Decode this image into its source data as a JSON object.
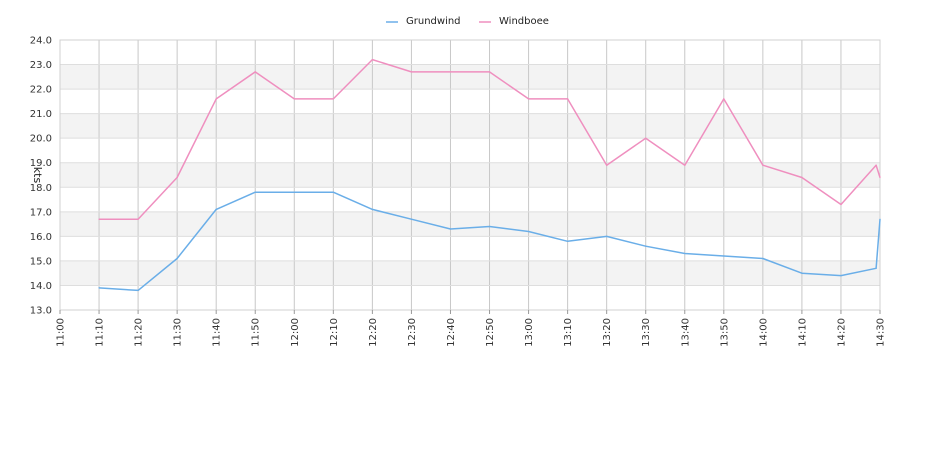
{
  "chart_data": {
    "type": "line",
    "xlabel": "",
    "ylabel": "kts",
    "ylim": [
      13.0,
      24.0
    ],
    "y_ticks": [
      "13.0",
      "14.0",
      "15.0",
      "16.0",
      "17.0",
      "18.0",
      "19.0",
      "20.0",
      "21.0",
      "22.0",
      "23.0",
      "24.0"
    ],
    "x_ticks": [
      "11:00",
      "11:10",
      "11:20",
      "11:30",
      "11:40",
      "11:50",
      "12:00",
      "12:10",
      "12:20",
      "12:30",
      "12:40",
      "12:50",
      "13:00",
      "13:10",
      "13:20",
      "13:30",
      "13:40",
      "13:50",
      "14:00",
      "14:10",
      "14:20",
      "14:30"
    ],
    "xlim": [
      "11:00",
      "14:30"
    ],
    "grid": true,
    "legend": "top-center",
    "series": [
      {
        "name": "Grundwind",
        "color": "#6aaee8",
        "x": [
          "11:10",
          "11:20",
          "11:30",
          "11:40",
          "11:50",
          "12:00",
          "12:10",
          "12:20",
          "12:30",
          "12:40",
          "12:50",
          "13:00",
          "13:10",
          "13:20",
          "13:30",
          "13:40",
          "13:50",
          "14:00",
          "14:10",
          "14:20",
          "14:29",
          "14:30"
        ],
        "values": [
          13.9,
          13.8,
          15.1,
          17.1,
          17.8,
          17.8,
          17.8,
          17.1,
          16.7,
          16.3,
          16.4,
          16.2,
          15.8,
          16.0,
          15.6,
          15.3,
          15.2,
          15.1,
          14.5,
          14.4,
          14.7,
          16.7
        ]
      },
      {
        "name": "Windboee",
        "color": "#ef8fbf",
        "x": [
          "11:10",
          "11:20",
          "11:30",
          "11:40",
          "11:50",
          "12:00",
          "12:10",
          "12:20",
          "12:30",
          "12:40",
          "12:50",
          "13:00",
          "13:10",
          "13:20",
          "13:30",
          "13:40",
          "13:50",
          "14:00",
          "14:10",
          "14:20",
          "14:29",
          "14:30"
        ],
        "values": [
          16.7,
          16.7,
          18.4,
          21.6,
          22.7,
          21.6,
          21.6,
          23.2,
          22.7,
          22.7,
          22.7,
          21.6,
          21.6,
          18.9,
          20.0,
          18.9,
          21.6,
          18.9,
          18.4,
          17.3,
          18.9,
          18.4
        ]
      }
    ]
  }
}
